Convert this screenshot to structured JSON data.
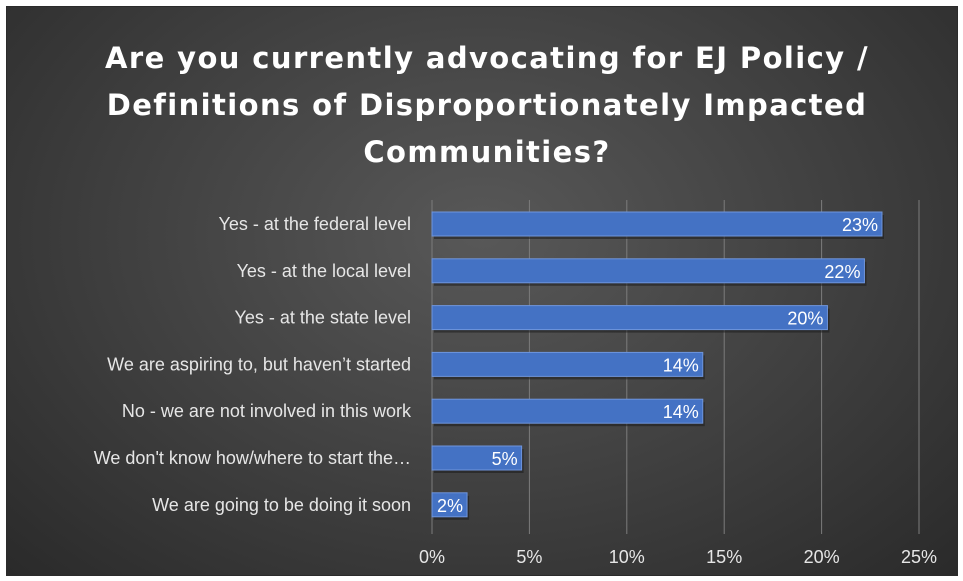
{
  "chart_data": {
    "type": "bar",
    "orientation": "horizontal",
    "title": "Are you currently advocating for EJ Policy / Definitions of Disproportionately Impacted Communities?",
    "categories": [
      "Yes - at the federal level",
      "Yes - at the local level",
      "Yes - at the state level",
      "We are aspiring to, but haven’t started",
      "No - we are not involved in this work",
      "We don't know how/where to start the…",
      "We are going to be doing it soon"
    ],
    "values": [
      23.1,
      22.2,
      20.3,
      13.9,
      13.9,
      4.6,
      1.8
    ],
    "data_labels": [
      "23%",
      "22%",
      "20%",
      "14%",
      "14%",
      "5%",
      "2%"
    ],
    "xlim": [
      0,
      25
    ],
    "xticks": [
      0,
      5,
      10,
      15,
      20,
      25
    ],
    "xtick_labels": [
      "0%",
      "5%",
      "10%",
      "15%",
      "20%",
      "25%"
    ],
    "xlabel": "",
    "ylabel": "",
    "grid": true,
    "legend": "none",
    "colors": {
      "bar_fill": "#4472c4",
      "bar_edge": "#6f95dc",
      "gridline": "#7c7c7c",
      "background": "#404040",
      "text": "#e6e6e6"
    }
  }
}
